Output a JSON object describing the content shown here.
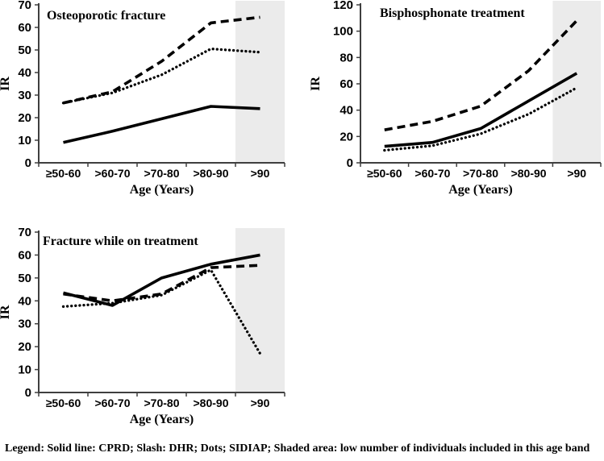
{
  "figure": {
    "legend_text": "Legend: Solid line: CPRD; Slash: DHR; Dots; SIDIAP; Shaded area: low number of individuals included in this age band"
  },
  "colors": {
    "line": "#000000",
    "axis": "#3f3f3f",
    "shaded_area": "#ebebeb",
    "background": "#ffffff"
  },
  "chart_data": [
    {
      "type": "line",
      "title": "Osteoporotic fracture",
      "xlabel": "Age (Years)",
      "ylabel": "IR",
      "ylim": [
        0,
        70
      ],
      "ytick_step": 10,
      "grid": false,
      "legend_position": "none",
      "categories": [
        "≥50-60",
        ">60-70",
        ">70-80",
        ">80-90",
        ">90"
      ],
      "shaded_category": ">90",
      "shaded_note": "low number of individuals included in this age band",
      "series": [
        {
          "name": "CPRD",
          "line_style": "solid",
          "values": [
            9,
            14,
            19.5,
            25,
            24
          ]
        },
        {
          "name": "DHR",
          "line_style": "dashed",
          "values": [
            26.5,
            31.5,
            45,
            62,
            64.5
          ]
        },
        {
          "name": "SIDIAP",
          "line_style": "dotted",
          "values": [
            26.5,
            31,
            39,
            50.5,
            49
          ]
        }
      ]
    },
    {
      "type": "line",
      "title": "Bisphosphonate treatment",
      "xlabel": "Age (Years)",
      "ylabel": "IR",
      "ylim": [
        0,
        120
      ],
      "ytick_step": 20,
      "grid": false,
      "legend_position": "none",
      "categories": [
        "≥50-60",
        ">60-70",
        ">70-80",
        ">80-90",
        ">90"
      ],
      "shaded_category": ">90",
      "shaded_note": "low number of individuals included in this age band",
      "series": [
        {
          "name": "CPRD",
          "line_style": "solid",
          "values": [
            12.5,
            15.5,
            26,
            47,
            68
          ]
        },
        {
          "name": "DHR",
          "line_style": "dashed",
          "values": [
            25,
            31.5,
            43,
            70,
            108
          ]
        },
        {
          "name": "SIDIAP",
          "line_style": "dotted",
          "values": [
            9.5,
            13,
            22,
            37,
            57
          ]
        }
      ]
    },
    {
      "type": "line",
      "title": "Fracture while on treatment",
      "xlabel": "Age (Years)",
      "ylabel": "IR",
      "ylim": [
        0,
        70
      ],
      "ytick_step": 10,
      "grid": false,
      "legend_position": "none",
      "categories": [
        "≥50-60",
        ">60-70",
        ">70-80",
        ">80-90",
        ">90"
      ],
      "shaded_category": ">90",
      "shaded_note": "low number of individuals included in this age band",
      "series": [
        {
          "name": "CPRD",
          "line_style": "solid",
          "values": [
            43.5,
            38,
            50,
            56,
            60
          ]
        },
        {
          "name": "DHR",
          "line_style": "dashed",
          "values": [
            43,
            40,
            43,
            54.5,
            55.5
          ]
        },
        {
          "name": "SIDIAP",
          "line_style": "dotted",
          "values": [
            37.5,
            39,
            42.5,
            53.5,
            17
          ]
        }
      ]
    }
  ]
}
